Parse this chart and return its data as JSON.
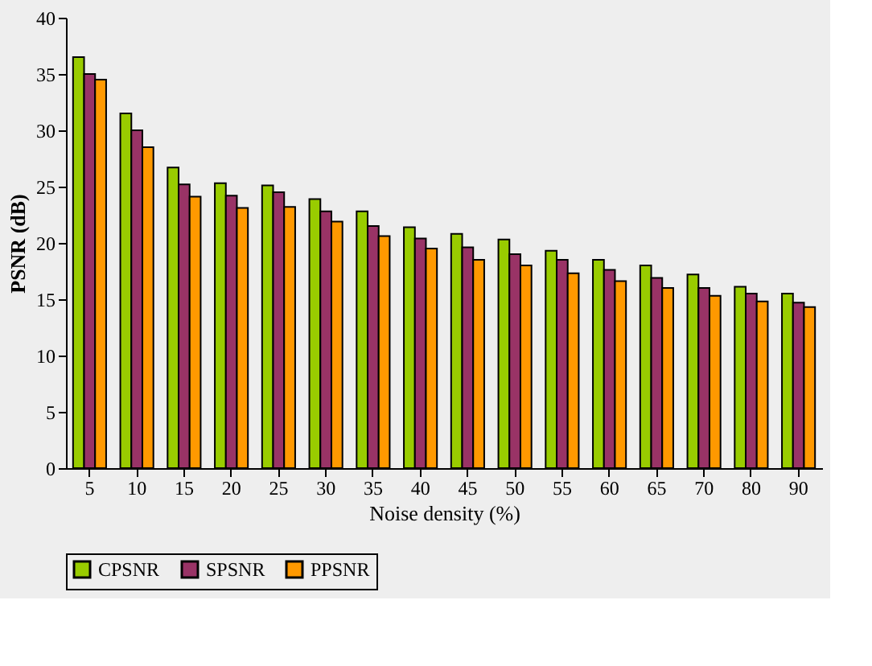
{
  "chart_data": {
    "type": "bar",
    "xlabel": "Noise density (%)",
    "ylabel": "PSNR (dB)",
    "categories": [
      "5",
      "10",
      "15",
      "20",
      "25",
      "30",
      "35",
      "40",
      "45",
      "50",
      "55",
      "60",
      "65",
      "70",
      "80",
      "90"
    ],
    "series": [
      {
        "name": "CPSNR",
        "color": "#99cc00",
        "values": [
          36.5,
          31.5,
          26.7,
          25.3,
          25.1,
          23.9,
          22.8,
          21.4,
          20.8,
          20.3,
          19.3,
          18.5,
          18.0,
          17.2,
          16.1,
          15.5
        ]
      },
      {
        "name": "SPSNR",
        "color": "#993366",
        "values": [
          35.0,
          30.0,
          25.2,
          24.2,
          24.5,
          22.8,
          21.5,
          20.4,
          19.6,
          19.0,
          18.5,
          17.6,
          16.9,
          16.0,
          15.5,
          14.7
        ]
      },
      {
        "name": "PPSNR",
        "color": "#ff9900",
        "values": [
          34.5,
          28.5,
          24.1,
          23.1,
          23.2,
          21.9,
          20.6,
          19.5,
          18.5,
          18.0,
          17.3,
          16.6,
          16.0,
          15.3,
          14.8,
          14.3
        ]
      }
    ],
    "ylim": [
      0,
      40
    ],
    "yticks": [
      0,
      5,
      10,
      15,
      20,
      25,
      30,
      35,
      40
    ],
    "grid": false,
    "legend": "bottom"
  }
}
